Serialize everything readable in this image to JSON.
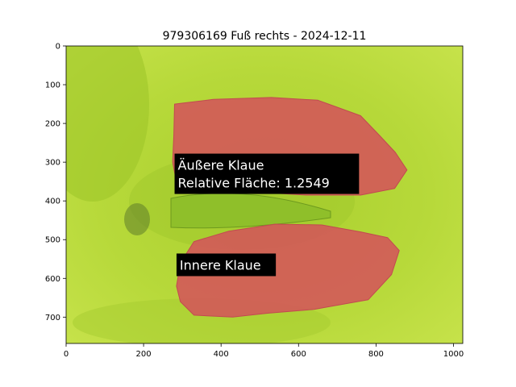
{
  "chart_data": {
    "type": "image",
    "title": "979306169 Fuß rechts - 2024-12-11",
    "xlabel": "",
    "ylabel": "",
    "xlim": [
      0,
      1024
    ],
    "ylim": [
      768,
      0
    ],
    "x_ticks": [
      0,
      200,
      400,
      600,
      800,
      1000
    ],
    "y_ticks": [
      0,
      100,
      200,
      300,
      400,
      500,
      600,
      700
    ],
    "grid": false,
    "background": "green hoof-sole photograph",
    "colors": {
      "background_green": "#b6d83a",
      "mask_red": "#d4545a",
      "label_box": "#000000",
      "label_text": "#ffffff"
    },
    "regions": [
      {
        "name": "outer-claw",
        "polygon": [
          [
            280,
            150
          ],
          [
            380,
            138
          ],
          [
            530,
            133
          ],
          [
            650,
            140
          ],
          [
            760,
            180
          ],
          [
            810,
            232
          ],
          [
            850,
            275
          ],
          [
            880,
            320
          ],
          [
            848,
            368
          ],
          [
            760,
            385
          ],
          [
            620,
            385
          ],
          [
            460,
            375
          ],
          [
            330,
            368
          ],
          [
            285,
            352
          ],
          [
            275,
            300
          ],
          [
            278,
            230
          ]
        ]
      },
      {
        "name": "inner-claw",
        "polygon": [
          [
            295,
            560
          ],
          [
            330,
            505
          ],
          [
            420,
            478
          ],
          [
            540,
            460
          ],
          [
            660,
            462
          ],
          [
            760,
            480
          ],
          [
            830,
            495
          ],
          [
            860,
            528
          ],
          [
            840,
            590
          ],
          [
            780,
            655
          ],
          [
            640,
            680
          ],
          [
            520,
            690
          ],
          [
            430,
            700
          ],
          [
            330,
            695
          ],
          [
            295,
            660
          ],
          [
            285,
            620
          ]
        ]
      }
    ],
    "annotations": [
      {
        "line1": "Äußere Klaue",
        "line2": "Relative Fläche: 1.2549",
        "anchor_x": 280,
        "anchor_y": 330
      },
      {
        "line1": "Innere Klaue",
        "line2": "",
        "anchor_x": 285,
        "anchor_y": 565
      }
    ]
  }
}
